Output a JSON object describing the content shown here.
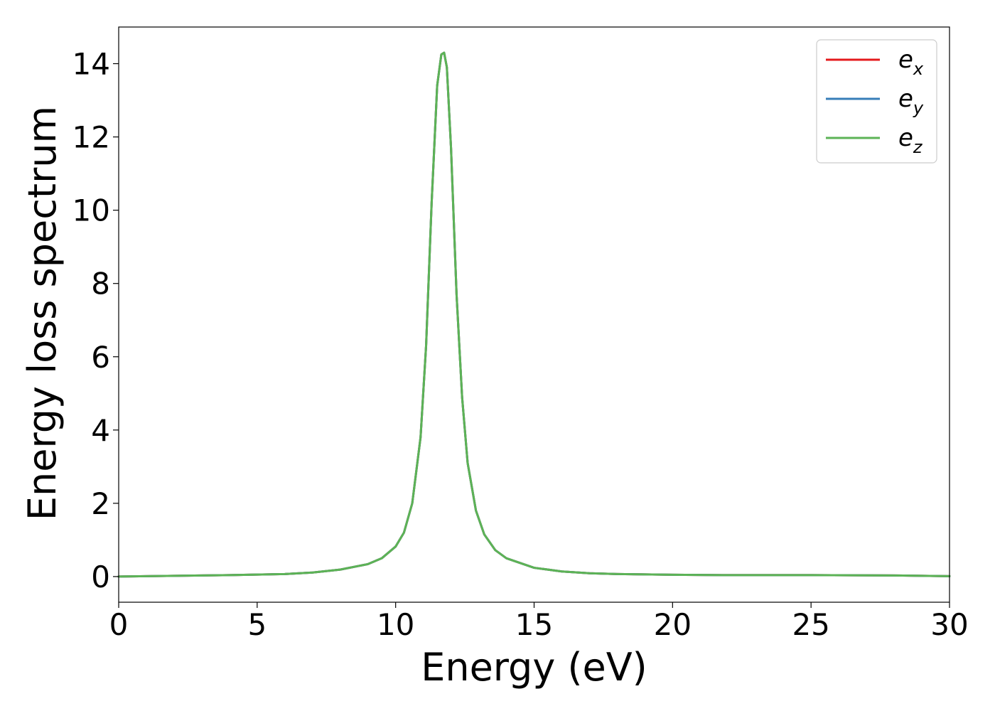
{
  "chart_data": {
    "type": "line",
    "title": "",
    "xlabel": "Energy (eV)",
    "ylabel": "Energy loss spectrum",
    "xlim": [
      0,
      30
    ],
    "ylim": [
      -0.7,
      15
    ],
    "xticks": [
      0,
      5,
      10,
      15,
      20,
      25,
      30
    ],
    "yticks": [
      0,
      2,
      4,
      6,
      8,
      10,
      12,
      14
    ],
    "grid": false,
    "legend_position": "top-right",
    "series": [
      {
        "name": "e_x",
        "label_base": "e",
        "label_sub": "x",
        "color": "#e41a1c",
        "x": [
          0,
          2,
          4,
          6,
          7,
          8,
          9,
          9.5,
          10,
          10.3,
          10.6,
          10.9,
          11.1,
          11.3,
          11.5,
          11.65,
          11.75,
          11.85,
          12.0,
          12.2,
          12.4,
          12.6,
          12.9,
          13.2,
          13.6,
          14.0,
          15,
          16,
          17,
          18,
          20,
          22,
          25,
          28,
          30
        ],
        "y": [
          0.0,
          0.02,
          0.04,
          0.07,
          0.11,
          0.19,
          0.34,
          0.5,
          0.82,
          1.2,
          2.0,
          3.8,
          6.3,
          10.2,
          13.4,
          14.25,
          14.3,
          13.9,
          11.7,
          7.7,
          4.9,
          3.1,
          1.8,
          1.15,
          0.72,
          0.5,
          0.24,
          0.14,
          0.09,
          0.07,
          0.05,
          0.04,
          0.04,
          0.03,
          0.01
        ]
      },
      {
        "name": "e_y",
        "label_base": "e",
        "label_sub": "y",
        "color": "#377eb8",
        "x": [
          0,
          2,
          4,
          6,
          7,
          8,
          9,
          9.5,
          10,
          10.3,
          10.6,
          10.9,
          11.1,
          11.3,
          11.5,
          11.65,
          11.75,
          11.85,
          12.0,
          12.2,
          12.4,
          12.6,
          12.9,
          13.2,
          13.6,
          14.0,
          15,
          16,
          17,
          18,
          20,
          22,
          25,
          28,
          30
        ],
        "y": [
          0.0,
          0.02,
          0.04,
          0.07,
          0.11,
          0.19,
          0.34,
          0.5,
          0.82,
          1.2,
          2.0,
          3.8,
          6.3,
          10.2,
          13.4,
          14.25,
          14.3,
          13.9,
          11.7,
          7.7,
          4.9,
          3.1,
          1.8,
          1.15,
          0.72,
          0.5,
          0.24,
          0.14,
          0.09,
          0.07,
          0.05,
          0.04,
          0.04,
          0.03,
          0.01
        ]
      },
      {
        "name": "e_z",
        "label_base": "e",
        "label_sub": "z",
        "color": "#5cb356",
        "x": [
          0,
          2,
          4,
          6,
          7,
          8,
          9,
          9.5,
          10,
          10.3,
          10.6,
          10.9,
          11.1,
          11.3,
          11.5,
          11.65,
          11.75,
          11.85,
          12.0,
          12.2,
          12.4,
          12.6,
          12.9,
          13.2,
          13.6,
          14.0,
          15,
          16,
          17,
          18,
          20,
          22,
          25,
          28,
          30
        ],
        "y": [
          0.0,
          0.02,
          0.04,
          0.07,
          0.11,
          0.19,
          0.34,
          0.5,
          0.82,
          1.2,
          2.0,
          3.8,
          6.3,
          10.2,
          13.4,
          14.25,
          14.3,
          13.9,
          11.7,
          7.7,
          4.9,
          3.1,
          1.8,
          1.15,
          0.72,
          0.5,
          0.24,
          0.14,
          0.09,
          0.07,
          0.05,
          0.04,
          0.04,
          0.03,
          0.01
        ]
      }
    ]
  }
}
